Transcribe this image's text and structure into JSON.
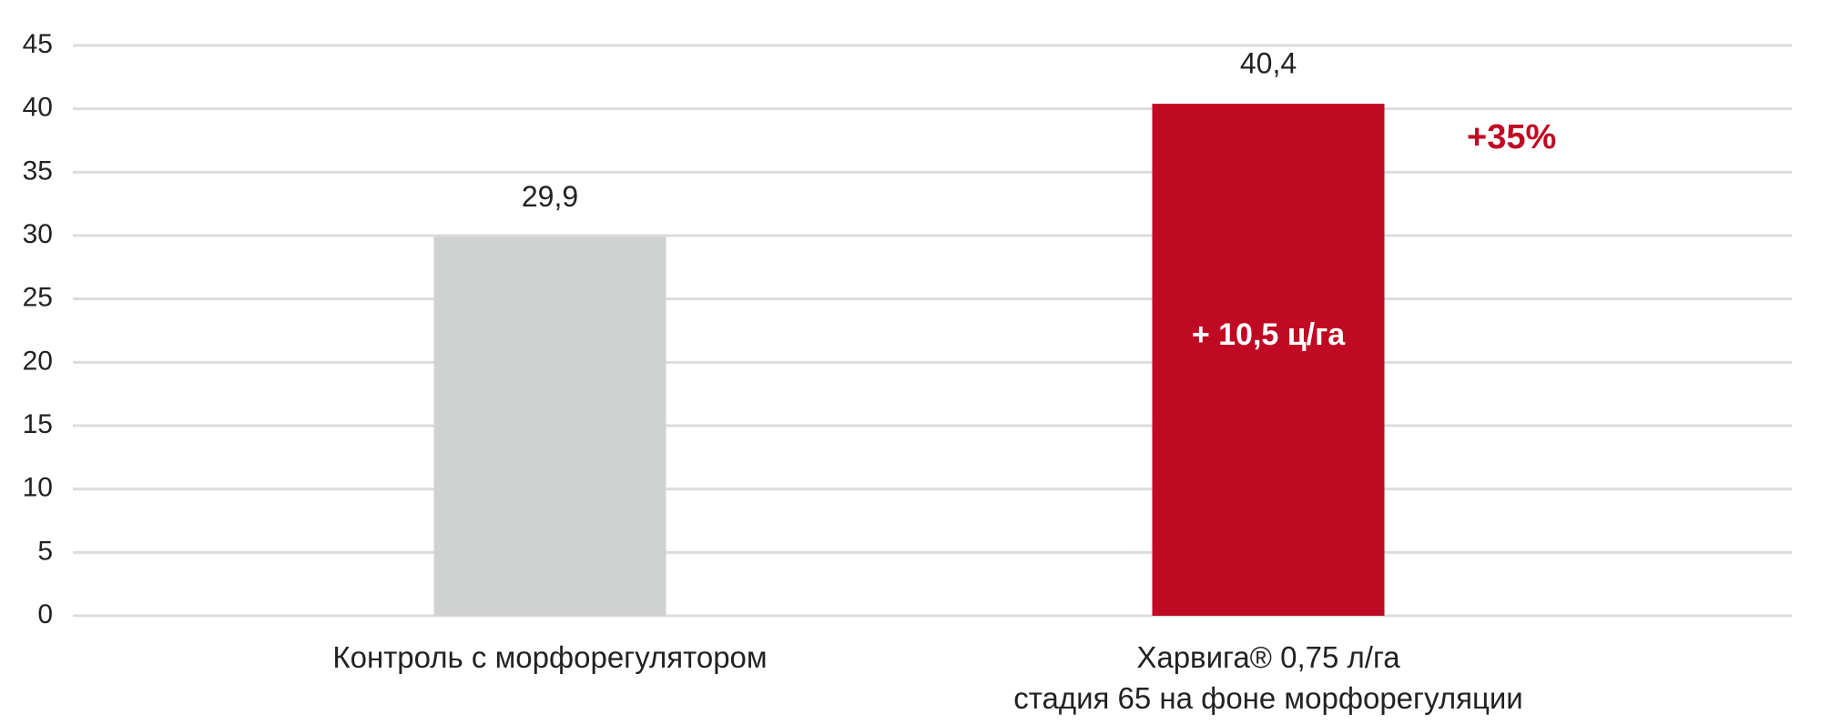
{
  "chart_data": {
    "type": "bar",
    "categories": [
      "Контроль с морфорегулятором",
      "Харвига® 0,75 л/га\nстадия 65 на фоне морфорегуляции"
    ],
    "values": [
      29.9,
      40.4
    ],
    "value_labels": [
      "29,9",
      "40,4"
    ],
    "colors": [
      "#d0d2d1",
      "#c00a24"
    ],
    "ylim": [
      0,
      45
    ],
    "yticks": [
      0,
      5,
      10,
      15,
      20,
      25,
      30,
      35,
      40,
      45
    ],
    "grid": true,
    "annotations": [
      "+35%",
      "+ 10,5 ц/га"
    ]
  }
}
